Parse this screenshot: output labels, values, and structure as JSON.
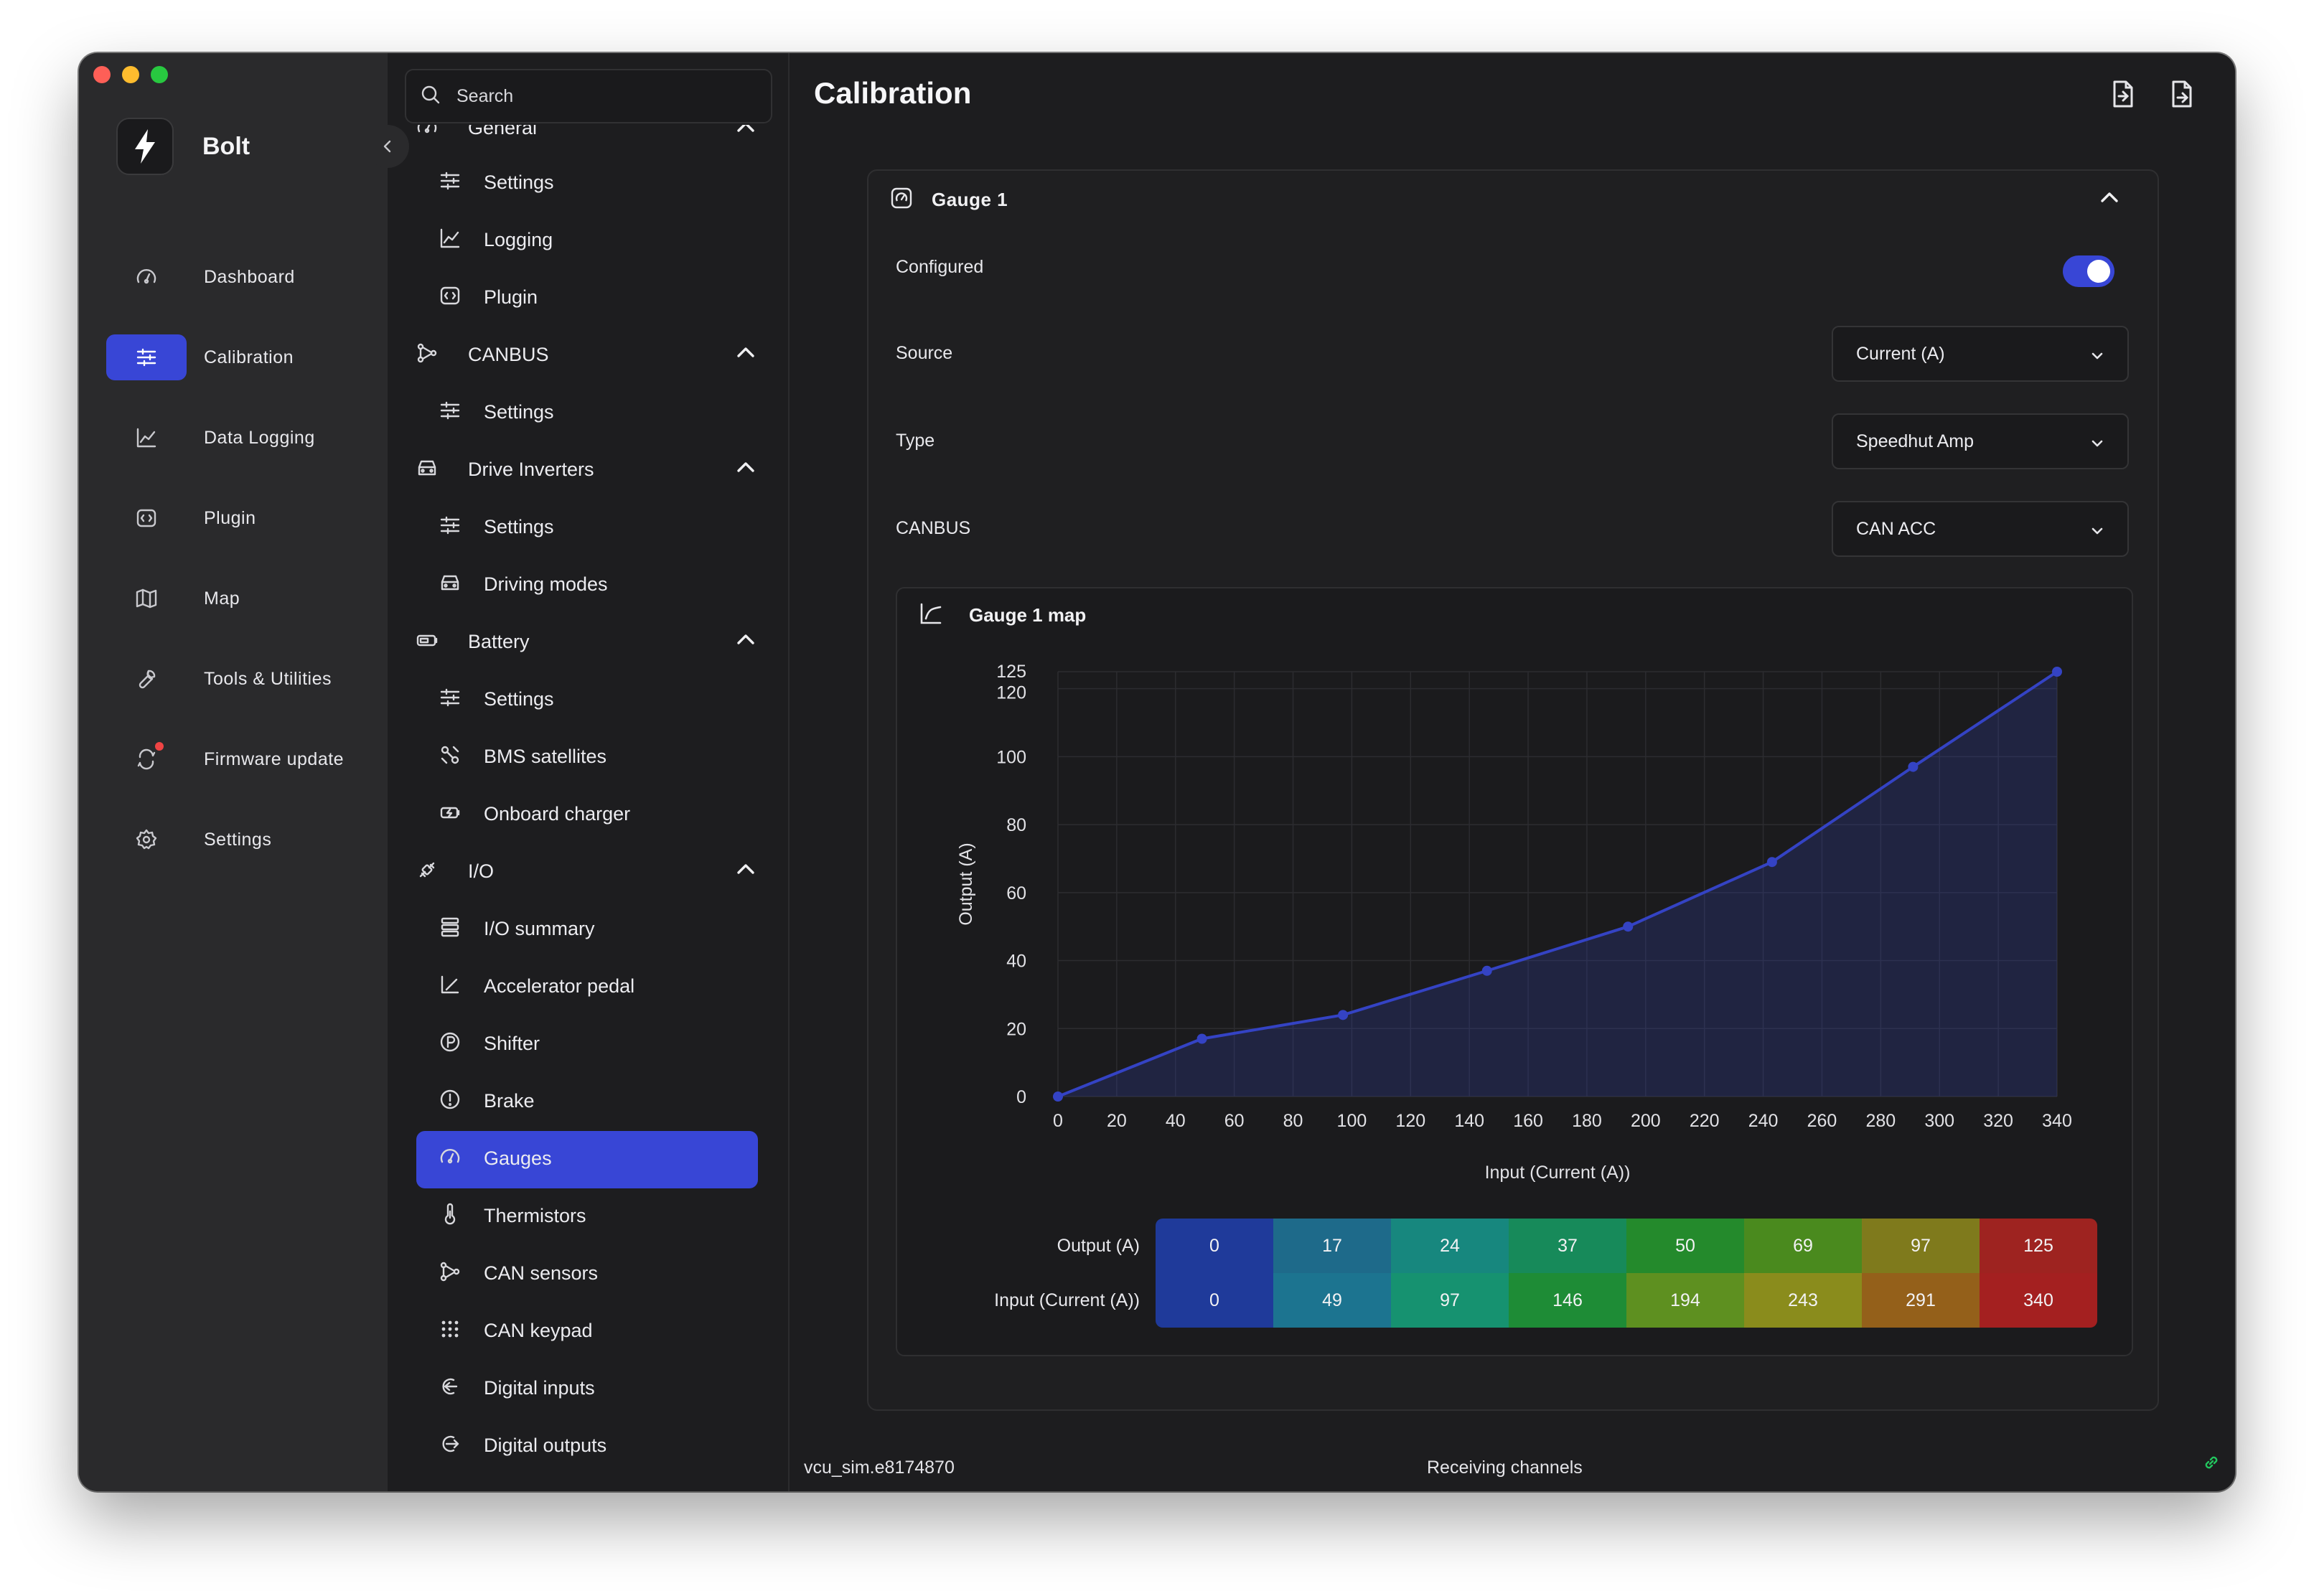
{
  "app": {
    "name": "Bolt"
  },
  "nav": {
    "items": [
      {
        "label": "Dashboard",
        "icon": "gauge-icon"
      },
      {
        "label": "Calibration",
        "icon": "sliders-icon",
        "active": true
      },
      {
        "label": "Data Logging",
        "icon": "chart-line-icon"
      },
      {
        "label": "Plugin",
        "icon": "plugin-icon"
      },
      {
        "label": "Map",
        "icon": "map-icon"
      },
      {
        "label": "Tools & Utilities",
        "icon": "wrench-icon"
      },
      {
        "label": "Firmware update",
        "icon": "refresh-icon"
      },
      {
        "label": "Settings",
        "icon": "gear-icon"
      }
    ]
  },
  "search": {
    "placeholder": "Search"
  },
  "subnav": {
    "partial_group": "General",
    "rows": [
      {
        "type": "child",
        "label": "Settings",
        "icon": "sliders-icon"
      },
      {
        "type": "child",
        "label": "Logging",
        "icon": "chart-line-icon"
      },
      {
        "type": "child",
        "label": "Plugin",
        "icon": "plugin-icon"
      },
      {
        "type": "group",
        "label": "CANBUS",
        "icon": "network-icon"
      },
      {
        "type": "child",
        "label": "Settings",
        "icon": "sliders-icon"
      },
      {
        "type": "group",
        "label": "Drive Inverters",
        "icon": "car-icon"
      },
      {
        "type": "child",
        "label": "Settings",
        "icon": "sliders-icon"
      },
      {
        "type": "child",
        "label": "Driving modes",
        "icon": "car-icon"
      },
      {
        "type": "group",
        "label": "Battery",
        "icon": "battery-icon"
      },
      {
        "type": "child",
        "label": "Settings",
        "icon": "sliders-icon"
      },
      {
        "type": "child",
        "label": "BMS satellites",
        "icon": "satellite-icon"
      },
      {
        "type": "child",
        "label": "Onboard charger",
        "icon": "charger-icon"
      },
      {
        "type": "group",
        "label": "I/O",
        "icon": "plug-icon"
      },
      {
        "type": "child",
        "label": "I/O summary",
        "icon": "list-icon"
      },
      {
        "type": "child",
        "label": "Accelerator pedal",
        "icon": "pedal-icon"
      },
      {
        "type": "child",
        "label": "Shifter",
        "icon": "shifter-icon"
      },
      {
        "type": "child",
        "label": "Brake",
        "icon": "brake-icon"
      },
      {
        "type": "child",
        "label": "Gauges",
        "icon": "gauge-icon",
        "active": true
      },
      {
        "type": "child",
        "label": "Thermistors",
        "icon": "thermometer-icon"
      },
      {
        "type": "child",
        "label": "CAN sensors",
        "icon": "network-icon"
      },
      {
        "type": "child",
        "label": "CAN keypad",
        "icon": "keypad-icon"
      },
      {
        "type": "child",
        "label": "Digital inputs",
        "icon": "input-icon"
      },
      {
        "type": "child",
        "label": "Digital outputs",
        "icon": "output-icon"
      }
    ]
  },
  "page": {
    "title": "Calibration"
  },
  "gauge": {
    "title": "Gauge 1",
    "configured_label": "Configured",
    "configured": true,
    "source_label": "Source",
    "source_value": "Current (A)",
    "type_label": "Type",
    "type_value": "Speedhut Amp",
    "canbus_label": "CANBUS",
    "canbus_value": "CAN ACC",
    "map_title": "Gauge 1 map"
  },
  "chart_data": {
    "type": "line",
    "title": "",
    "xlabel": "Input (Current (A))",
    "ylabel": "Output (A)",
    "x": [
      0,
      49,
      97,
      146,
      194,
      243,
      291,
      340
    ],
    "series": [
      {
        "values": [
          0,
          17,
          24,
          37,
          50,
          69,
          97,
          125
        ]
      }
    ],
    "xlim": [
      0,
      340
    ],
    "ylim": [
      0,
      125
    ],
    "xticks": [
      0,
      20,
      40,
      60,
      80,
      100,
      120,
      140,
      160,
      180,
      200,
      220,
      240,
      260,
      280,
      300,
      320,
      340
    ],
    "yticks": [
      0,
      20,
      40,
      60,
      80,
      100,
      120,
      125
    ],
    "grid": true,
    "area_fill": true,
    "line_color": "#3443c4"
  },
  "map_table": {
    "output_label": "Output (A)",
    "input_label": "Input (Current (A))",
    "output_values": [
      "0",
      "17",
      "24",
      "37",
      "50",
      "69",
      "97",
      "125"
    ],
    "input_values": [
      "0",
      "49",
      "97",
      "146",
      "194",
      "243",
      "291",
      "340"
    ],
    "output_colors": [
      "#1f3a9a",
      "#1e6a8a",
      "#17877e",
      "#178a5a",
      "#248a2c",
      "#4a8a1e",
      "#7f7a1c",
      "#9e2320"
    ],
    "input_colors": [
      "#1f3a9a",
      "#1c7490",
      "#169270",
      "#1e8c36",
      "#5e9020",
      "#8a8c1c",
      "#94601a",
      "#a42020"
    ]
  },
  "status": {
    "device": "vcu_sim.e8174870",
    "message": "Receiving channels"
  },
  "colors": {
    "accent": "#3846d6",
    "toggle_on": "#3846d6",
    "notify": "#ef4444",
    "link_ok": "#22c55e"
  }
}
